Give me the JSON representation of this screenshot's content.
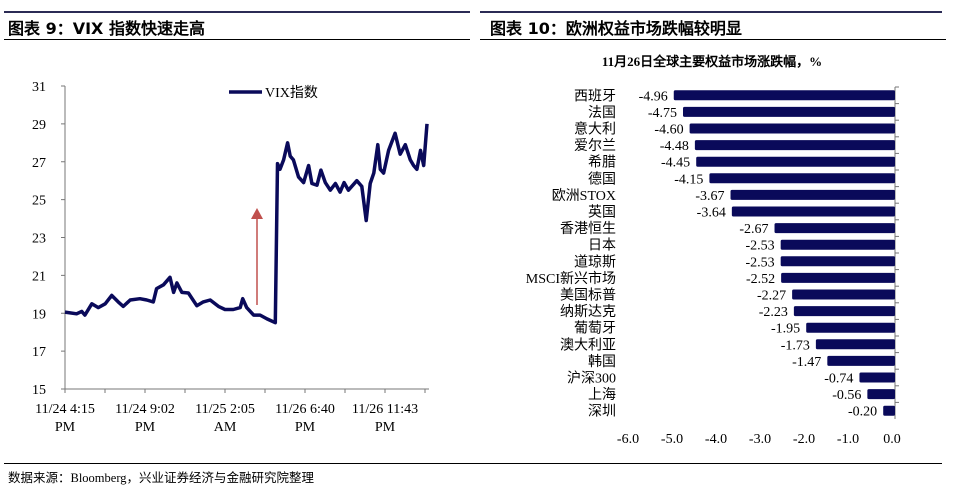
{
  "left_panel": {
    "title": "图表 9：VIX 指数快速走高"
  },
  "right_panel": {
    "title": "图表 10：欧洲权益市场跌幅较明显"
  },
  "source": "数据来源：Bloomberg，兴业证券经济与金融研究院整理",
  "colors": {
    "series": "#0a0a5a",
    "arrow": "#c0504d",
    "rule": "#2b2b55"
  },
  "chart_data": [
    {
      "type": "line",
      "title": "",
      "legend": [
        "VIX指数"
      ],
      "legend_position": "top-center",
      "ylim": [
        15,
        31
      ],
      "yticks": [
        "15",
        "17",
        "19",
        "21",
        "23",
        "25",
        "27",
        "29",
        "31"
      ],
      "xlim": [
        0,
        100
      ],
      "xlabel_note": "x is a time index from 0 (11/24 4:15 PM) to 100 (end of series)",
      "xtick_labels": [
        [
          "11/24  4:15",
          "PM"
        ],
        [
          "11/24  9:02",
          "PM"
        ],
        [
          "11/25  2:05",
          "AM"
        ],
        [
          "11/26  6:40",
          "PM"
        ],
        [
          "11/26  11:43",
          "PM"
        ]
      ],
      "annotation": "red upward arrow before the jump",
      "series": [
        {
          "name": "VIX指数",
          "x": [
            0,
            3.2,
            4.6,
            5.5,
            7.4,
            9.2,
            11.1,
            12.9,
            14.7,
            16.1,
            18.0,
            20.7,
            22.6,
            24.4,
            25.3,
            27.2,
            29.0,
            30.0,
            30.9,
            32.3,
            34.1,
            36.4,
            38.2,
            40.1,
            42.4,
            44.2,
            46.5,
            48.4,
            49.1,
            50.2,
            52.1,
            53.9,
            55.8,
            58.1,
            58.7,
            59.4,
            60.4,
            61.5,
            62.2,
            63.1,
            64.5,
            65.9,
            67.3,
            68.2,
            69.6,
            70.7,
            71.9,
            73.3,
            74.7,
            76.0,
            77.1,
            78.3,
            80.6,
            82.0,
            83.2,
            84.3,
            85.3,
            86.4,
            87.1,
            88.0,
            89.4,
            91.2,
            92.6,
            94.0,
            95.4,
            96.3,
            97.2,
            98.2,
            99.1,
            100
          ],
          "y": [
            19.06,
            18.97,
            19.1,
            18.9,
            19.5,
            19.3,
            19.5,
            19.94,
            19.6,
            19.36,
            19.7,
            19.77,
            19.7,
            19.6,
            20.3,
            20.5,
            20.9,
            20.1,
            20.6,
            20.1,
            20.07,
            19.4,
            19.6,
            19.7,
            19.36,
            19.2,
            19.2,
            19.3,
            19.77,
            19.3,
            18.9,
            18.9,
            18.7,
            18.5,
            26.9,
            26.6,
            27.1,
            28.0,
            27.3,
            27.1,
            26.2,
            25.9,
            26.8,
            25.85,
            25.76,
            26.56,
            25.9,
            25.5,
            25.85,
            25.4,
            25.9,
            25.5,
            26.0,
            25.7,
            23.9,
            25.85,
            26.4,
            27.9,
            26.6,
            26.4,
            27.6,
            28.5,
            27.4,
            27.9,
            27.1,
            26.8,
            26.6,
            27.6,
            26.8,
            29.0
          ]
        }
      ]
    },
    {
      "type": "bar",
      "orientation": "horizontal",
      "title": "11月26日全球主要权益市场涨跌幅，%",
      "xlim": [
        -6.0,
        0.0
      ],
      "xticks": [
        "-6.0",
        "-5.0",
        "-4.0",
        "-3.0",
        "-2.0",
        "-1.0",
        "0.0"
      ],
      "categories": [
        "西班牙",
        "法国",
        "意大利",
        "爱尔兰",
        "希腊",
        "德国",
        "欧洲STOX",
        "英国",
        "香港恒生",
        "日本",
        "道琼斯",
        "MSCI新兴市场",
        "美国标普",
        "纳斯达克",
        "葡萄牙",
        "澳大利亚",
        "韩国",
        "沪深300",
        "上海",
        "深圳"
      ],
      "values": [
        -4.96,
        -4.75,
        -4.6,
        -4.48,
        -4.45,
        -4.15,
        -3.67,
        -3.64,
        -2.67,
        -2.53,
        -2.53,
        -2.52,
        -2.27,
        -2.23,
        -1.95,
        -1.73,
        -1.47,
        -0.74,
        -0.56,
        -0.2
      ],
      "value_labels": [
        "-4.96",
        "-4.75",
        "-4.60",
        "-4.48",
        "-4.45",
        "-4.15",
        "-3.67",
        "-3.64",
        "-2.67",
        "-2.53",
        "-2.53",
        "-2.52",
        "-2.27",
        "-2.23",
        "-1.95",
        "-1.73",
        "-1.47",
        "-0.74",
        "-0.56",
        "-0.20"
      ]
    }
  ]
}
